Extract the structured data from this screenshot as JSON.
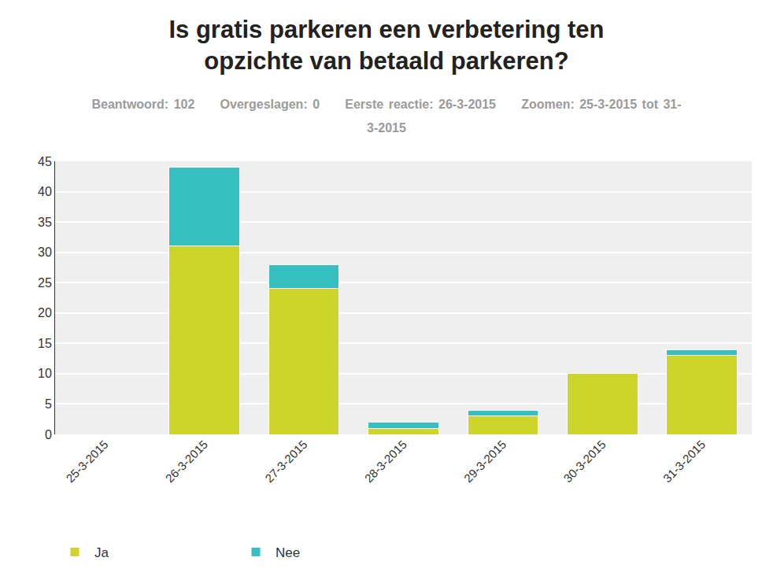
{
  "chart_data": {
    "type": "bar",
    "title": "Is gratis parkeren een verbetering ten opzichte van betaald parkeren?",
    "subtitle": "Beantwoord: 102     Overgeslagen: 0     Eerste reactie: 26-3-2015     Zoomen: 25-3-2015 tot 31-3-2015",
    "categories": [
      "25-3-2015",
      "26-3-2015",
      "27-3-2015",
      "28-3-2015",
      "29-3-2015",
      "30-3-2015",
      "31-3-2015"
    ],
    "series": [
      {
        "name": "Ja",
        "color": "#cdd42a",
        "values": [
          0,
          31,
          24,
          1,
          3,
          10,
          13
        ]
      },
      {
        "name": "Nee",
        "color": "#35bfc0",
        "values": [
          0,
          13,
          4,
          1,
          1,
          0,
          1
        ]
      }
    ],
    "stacked": true,
    "ylim": [
      0,
      45
    ],
    "yticks": [
      0,
      5,
      10,
      15,
      20,
      25,
      30,
      35,
      40,
      45
    ],
    "grid": true,
    "legend": "bottom left"
  }
}
